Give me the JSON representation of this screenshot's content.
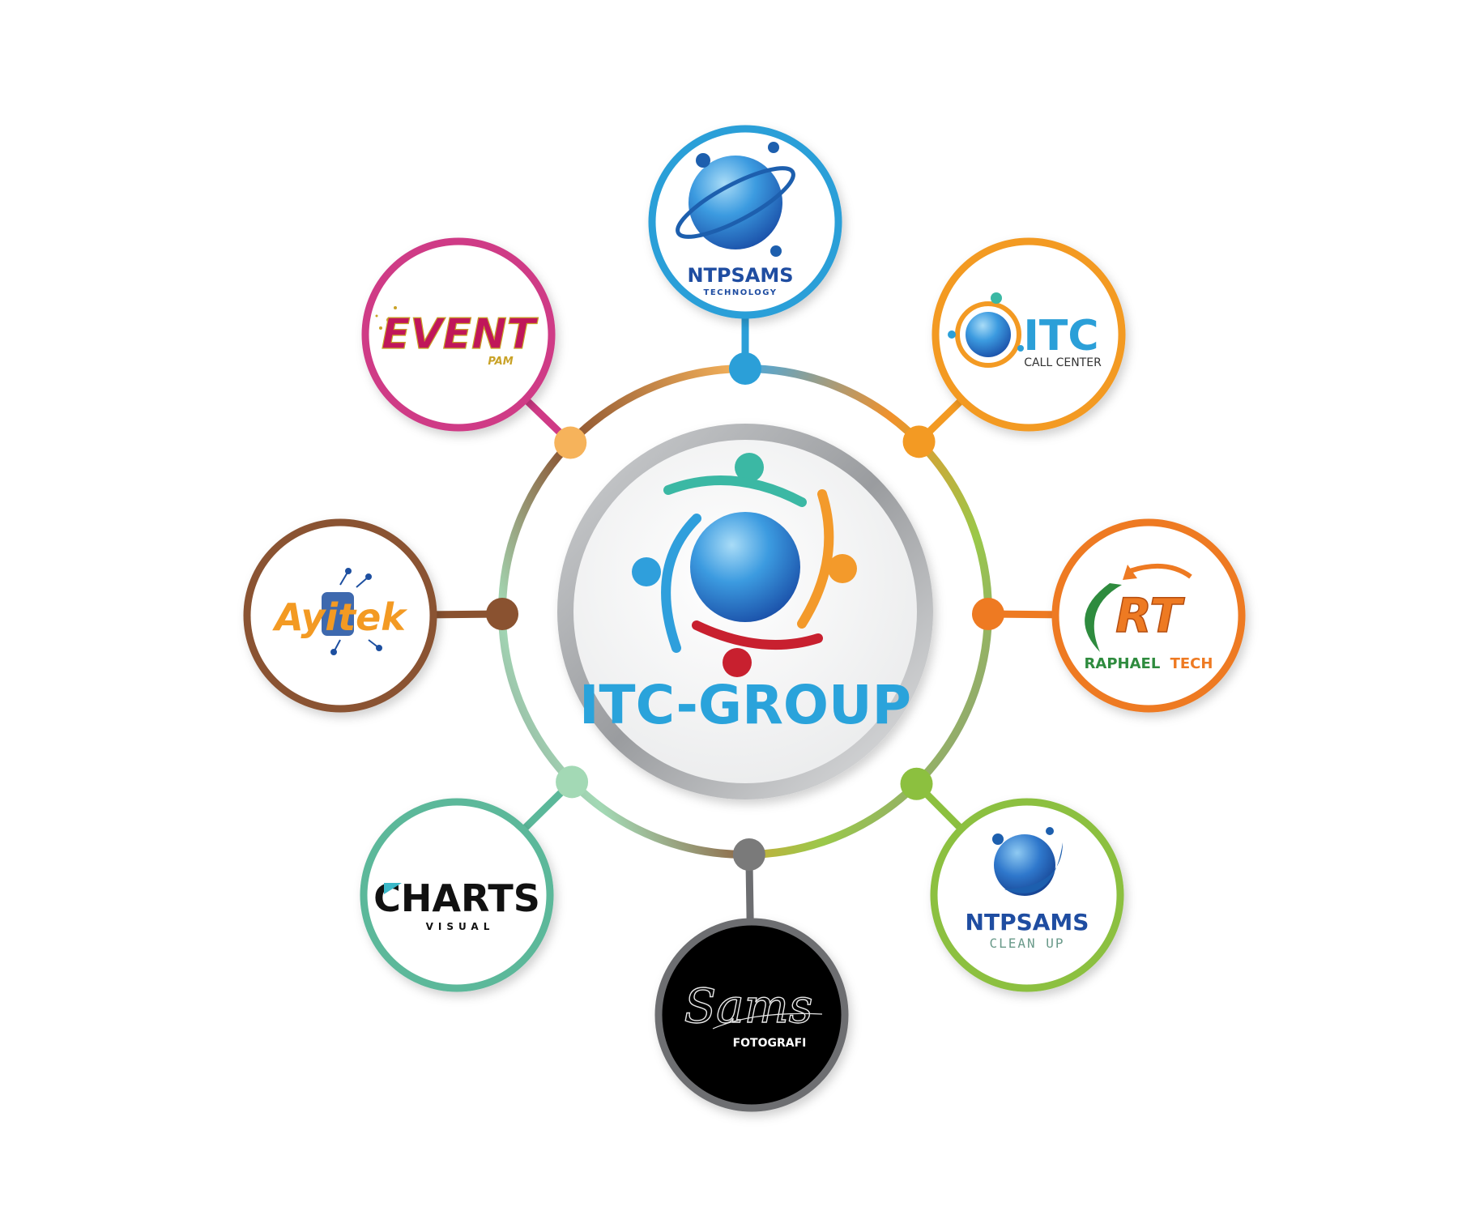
{
  "hub": {
    "title": "ITC-GROUP",
    "title_color": "#2aa3db",
    "people_colors": [
      "#3bb8a4",
      "#f39a2b",
      "#c8202f",
      "#2f9fdc"
    ]
  },
  "nodes": [
    {
      "id": "ntpsams-technology",
      "title": "NTPSAMS",
      "subtitle": "TECHNOLOGY",
      "ring_color": "#2b9fd8",
      "dot_color": "#2b9fd8"
    },
    {
      "id": "itc-call-center",
      "title": "ITC",
      "subtitle": "CALL CENTER",
      "ring_color": "#f39a23",
      "dot_color": "#f39a23"
    },
    {
      "id": "raphael-tech",
      "title": "RAPHAEL",
      "title2": "TECH",
      "logo_letters": "RT",
      "ring_color": "#ee7a22",
      "dot_color": "#ee7a22"
    },
    {
      "id": "ntpsams-clean-up",
      "title": "NTPSAMS",
      "subtitle": "CLEAN UP",
      "ring_color": "#8cc03f",
      "dot_color": "#8cc03f"
    },
    {
      "id": "sams-fotografi",
      "script": "Sams",
      "subtitle": "FOTOGRAFI",
      "ring_color": "#6d6e71",
      "dot_color": "#7a7a7a"
    },
    {
      "id": "charts-visual",
      "title": "CHARTS",
      "subtitle": "VISUAL",
      "ring_color": "#5bb89a",
      "dot_color": "#a3d9b5"
    },
    {
      "id": "ayitek",
      "title": "Ayitek",
      "ring_color": "#8a5230",
      "dot_color": "#8a5230"
    },
    {
      "id": "event-pam",
      "title": "EVENT",
      "subtitle": "PAM",
      "ring_color": "#cf3a86",
      "dot_color": "#f6b35b"
    }
  ]
}
